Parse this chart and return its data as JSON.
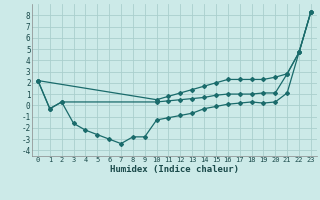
{
  "xlabel": "Humidex (Indice chaleur)",
  "bg_color": "#cceae8",
  "grid_color": "#aacfcd",
  "line_color": "#1a6b6b",
  "xlim": [
    -0.5,
    23.5
  ],
  "ylim": [
    -4.5,
    9
  ],
  "yticks": [
    -4,
    -3,
    -2,
    -1,
    0,
    1,
    2,
    3,
    4,
    5,
    6,
    7,
    8
  ],
  "xticks": [
    0,
    1,
    2,
    3,
    4,
    5,
    6,
    7,
    8,
    9,
    10,
    11,
    12,
    13,
    14,
    15,
    16,
    17,
    18,
    19,
    20,
    21,
    22,
    23
  ],
  "line_top_x": [
    0,
    10,
    11,
    12,
    13,
    14,
    15,
    16,
    17,
    18,
    19,
    20,
    21,
    22,
    23
  ],
  "line_top_y": [
    2.2,
    0.5,
    0.8,
    1.1,
    1.4,
    1.7,
    2.0,
    2.3,
    2.3,
    2.3,
    2.3,
    2.5,
    2.8,
    4.7,
    8.3
  ],
  "line_mid_x": [
    0,
    1,
    2,
    10,
    11,
    12,
    13,
    14,
    15,
    16,
    17,
    18,
    19,
    20,
    21,
    22,
    23
  ],
  "line_mid_y": [
    2.2,
    -0.3,
    0.3,
    0.3,
    0.4,
    0.5,
    0.6,
    0.7,
    0.9,
    1.0,
    1.0,
    1.0,
    1.1,
    1.1,
    2.8,
    4.7,
    8.3
  ],
  "line_bot_x": [
    0,
    1,
    2,
    3,
    4,
    5,
    6,
    7,
    8,
    9,
    10,
    11,
    12,
    13,
    14,
    15,
    16,
    17,
    18,
    19,
    20,
    21,
    22,
    23
  ],
  "line_bot_y": [
    2.2,
    -0.3,
    0.3,
    -1.6,
    -2.2,
    -2.6,
    -3.0,
    -3.4,
    -2.8,
    -2.8,
    -1.3,
    -1.1,
    -0.9,
    -0.7,
    -0.3,
    -0.1,
    0.1,
    0.2,
    0.3,
    0.2,
    0.3,
    1.1,
    4.7,
    8.3
  ]
}
